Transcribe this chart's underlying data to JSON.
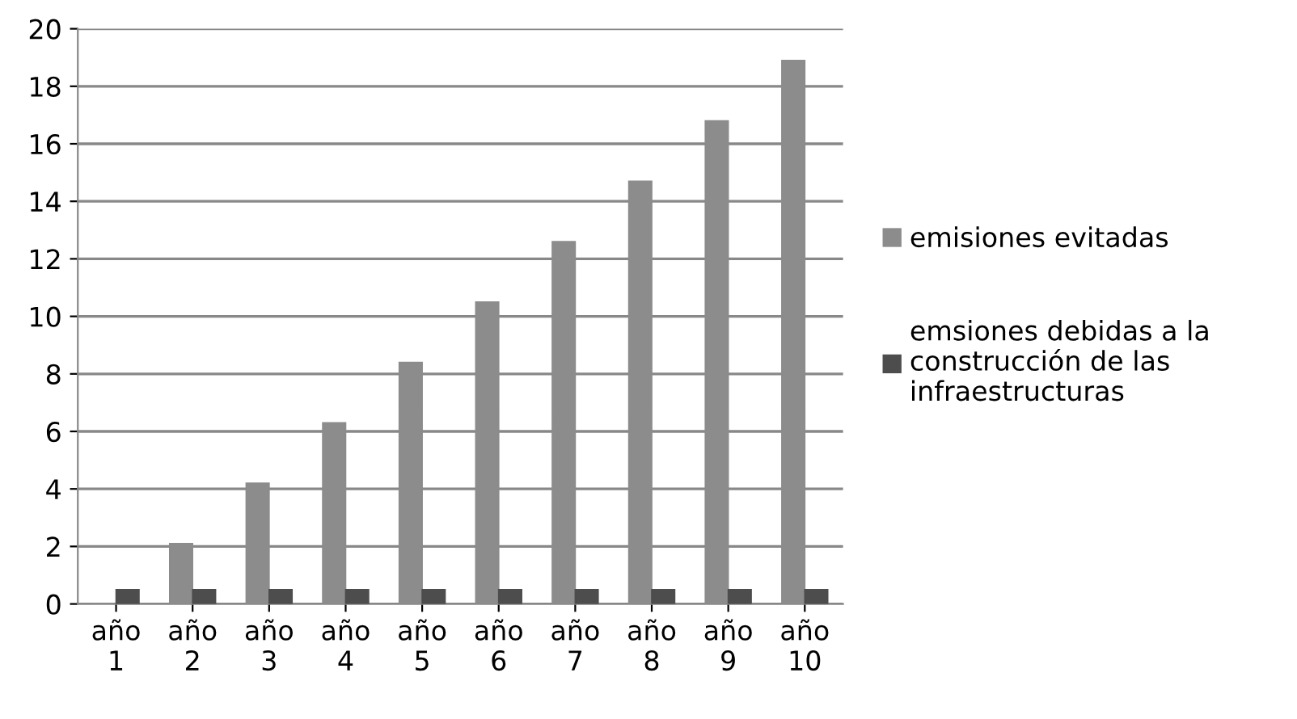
{
  "chart_data": {
    "type": "bar",
    "categories": [
      "año 1",
      "año 2",
      "año 3",
      "año 4",
      "año 5",
      "año 6",
      "año 7",
      "año 8",
      "año 9",
      "año 10"
    ],
    "series": [
      {
        "name": "emisiones evitadas",
        "color": "#8c8c8c",
        "values": [
          0,
          2.1,
          4.2,
          6.3,
          8.4,
          10.5,
          12.6,
          14.7,
          16.8,
          18.9
        ]
      },
      {
        "name": "emsiones debidas a la construcción de las infraestructuras",
        "color": "#4d4d4d",
        "values": [
          0.5,
          0.5,
          0.5,
          0.5,
          0.5,
          0.5,
          0.5,
          0.5,
          0.5,
          0.5
        ]
      }
    ],
    "ylim": [
      0,
      20
    ],
    "yticks": [
      0,
      2,
      4,
      6,
      8,
      10,
      12,
      14,
      16,
      18,
      20
    ],
    "grid": "y",
    "legend": "right"
  }
}
